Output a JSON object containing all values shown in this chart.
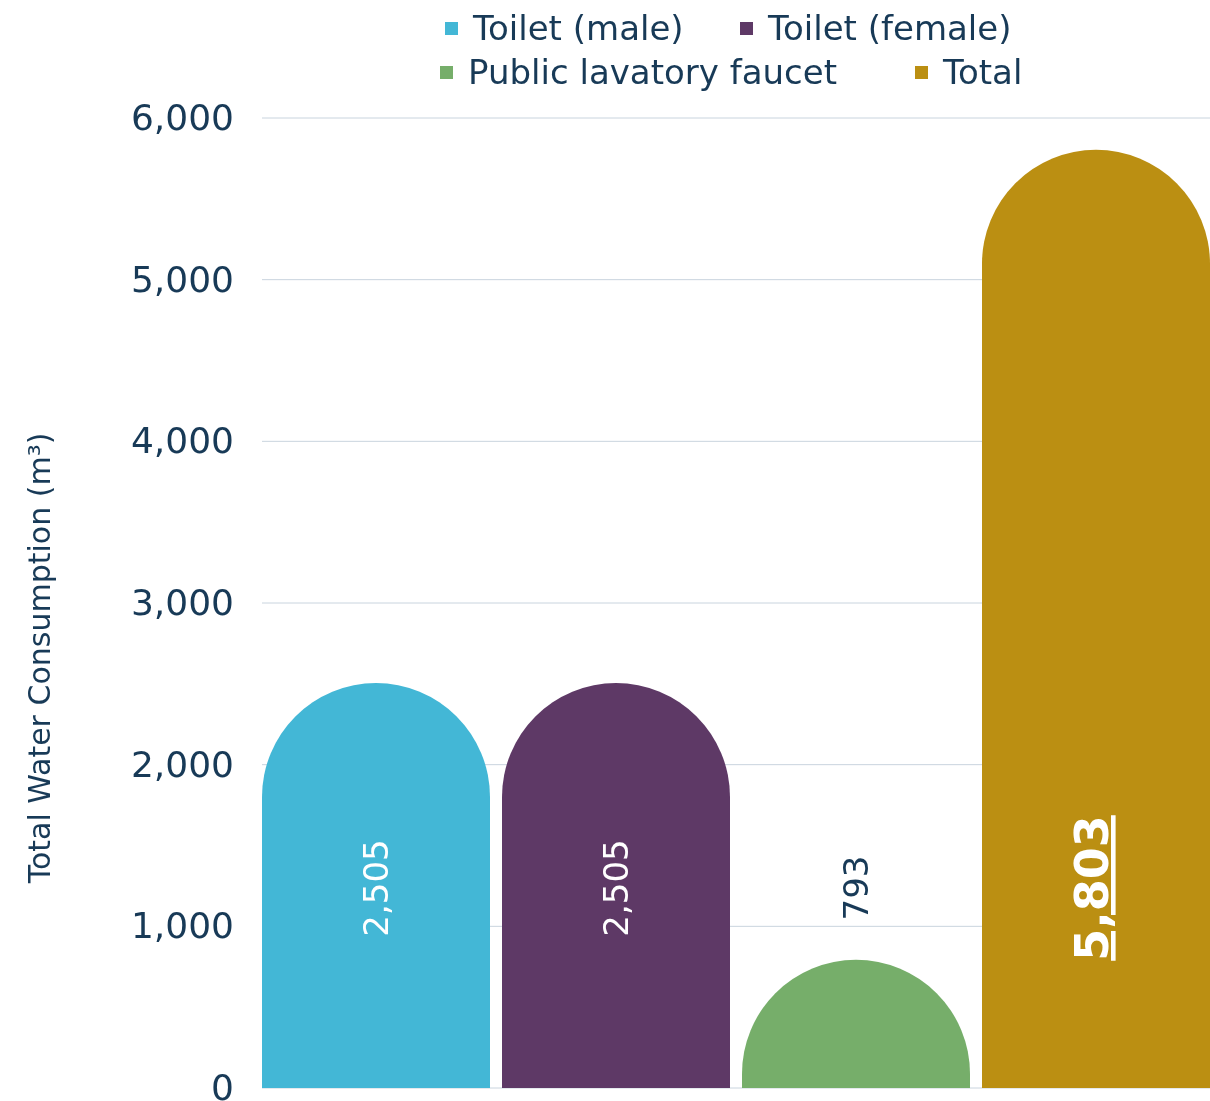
{
  "chart_data": {
    "type": "bar",
    "stacked": true,
    "ylabel": "Total Water Consumption (m³)",
    "categories": [
      null,
      null,
      null,
      null
    ],
    "series": [
      {
        "name": "Toilet (male)",
        "color": "#43b7d6",
        "values": [
          2505,
          null,
          null,
          null
        ]
      },
      {
        "name": "Toilet (female)",
        "color": "#5e3966",
        "values": [
          null,
          2505,
          null,
          null
        ]
      },
      {
        "name": "Public lavatory faucet",
        "color": "#76ae6a",
        "values": [
          null,
          null,
          793,
          null
        ]
      },
      {
        "name": "Total",
        "color": "#bb8f12",
        "values": [
          null,
          null,
          null,
          5803
        ]
      }
    ],
    "ylim": [
      0,
      6000
    ],
    "yticks": [
      {
        "value": 0,
        "label": "0"
      },
      {
        "value": 1000,
        "label": "1,000"
      },
      {
        "value": 2000,
        "label": "2,000"
      },
      {
        "value": 3000,
        "label": "3,000"
      },
      {
        "value": 4000,
        "label": "4,000"
      },
      {
        "value": 5000,
        "label": "5,000"
      },
      {
        "value": 6000,
        "label": "6,000"
      }
    ],
    "grid": "y",
    "legend": "top",
    "value_labels": [
      "2,505",
      "2,505",
      "793",
      "5,803"
    ]
  }
}
